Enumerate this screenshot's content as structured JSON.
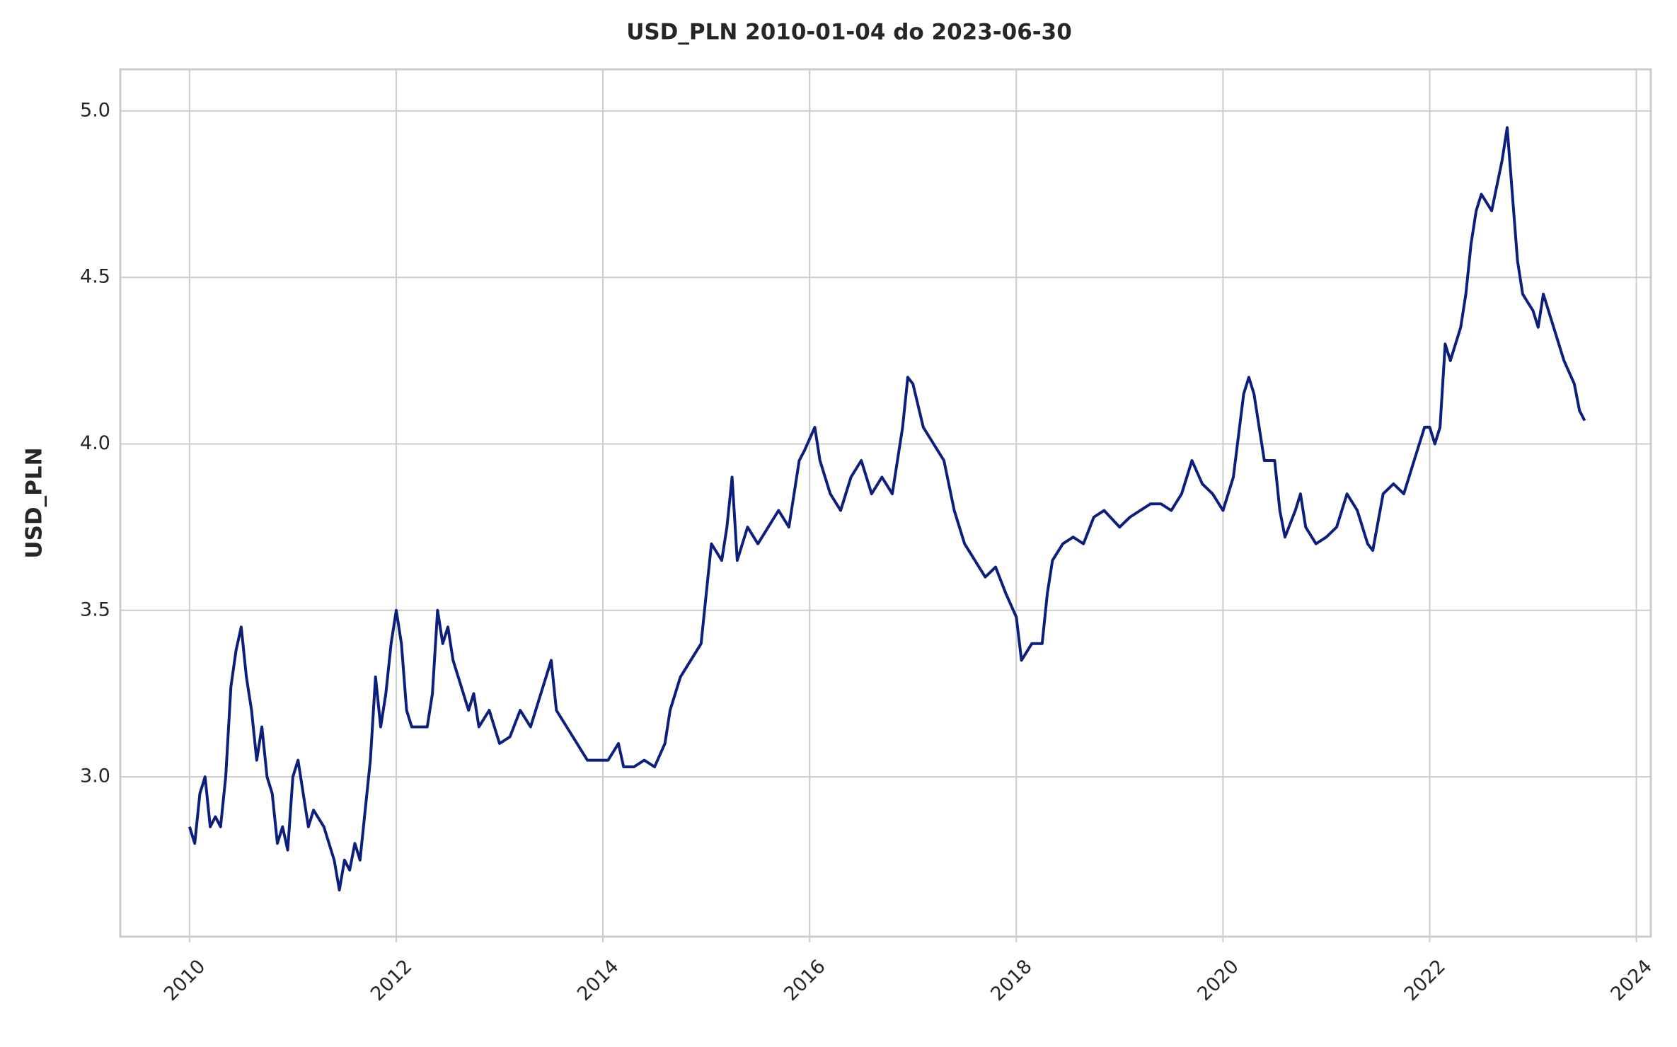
{
  "chart_data": {
    "type": "line",
    "title": "USD_PLN 2010-01-04 do 2023-06-30",
    "ylabel": "USD_PLN",
    "color": "#0c1f7d",
    "grid": true,
    "xlim": [
      2009.33,
      2024.14
    ],
    "ylim": [
      2.52,
      5.125
    ],
    "xticks": [
      2010,
      2012,
      2014,
      2016,
      2018,
      2020,
      2022,
      2024
    ],
    "yticks": [
      {
        "value": 3,
        "label": "3.0"
      },
      3.5,
      {
        "value": 4,
        "label": "4.0"
      },
      4.5,
      {
        "value": 5,
        "label": "5.0"
      }
    ],
    "x": [
      2010.0,
      2010.05,
      2010.1,
      2010.15,
      2010.2,
      2010.25,
      2010.3,
      2010.35,
      2010.4,
      2010.45,
      2010.5,
      2010.55,
      2010.6,
      2010.65,
      2010.7,
      2010.75,
      2010.8,
      2010.85,
      2010.9,
      2010.95,
      2011.0,
      2011.05,
      2011.1,
      2011.15,
      2011.2,
      2011.3,
      2011.4,
      2011.45,
      2011.5,
      2011.55,
      2011.6,
      2011.65,
      2011.7,
      2011.75,
      2011.8,
      2011.85,
      2011.9,
      2011.95,
      2012.0,
      2012.05,
      2012.1,
      2012.15,
      2012.2,
      2012.3,
      2012.35,
      2012.4,
      2012.45,
      2012.5,
      2012.55,
      2012.6,
      2012.7,
      2012.75,
      2012.8,
      2012.9,
      2013.0,
      2013.1,
      2013.2,
      2013.3,
      2013.4,
      2013.5,
      2013.55,
      2013.65,
      2013.75,
      2013.85,
      2013.95,
      2014.05,
      2014.15,
      2014.2,
      2014.3,
      2014.4,
      2014.5,
      2014.6,
      2014.65,
      2014.75,
      2014.85,
      2014.95,
      2015.0,
      2015.05,
      2015.15,
      2015.2,
      2015.25,
      2015.3,
      2015.4,
      2015.5,
      2015.6,
      2015.7,
      2015.8,
      2015.9,
      2015.95,
      2016.05,
      2016.1,
      2016.2,
      2016.3,
      2016.4,
      2016.5,
      2016.6,
      2016.7,
      2016.8,
      2016.9,
      2016.95,
      2017.0,
      2017.1,
      2017.2,
      2017.3,
      2017.4,
      2017.5,
      2017.6,
      2017.7,
      2017.8,
      2017.9,
      2018.0,
      2018.05,
      2018.15,
      2018.25,
      2018.3,
      2018.35,
      2018.45,
      2018.55,
      2018.65,
      2018.75,
      2018.85,
      2019.0,
      2019.1,
      2019.2,
      2019.3,
      2019.4,
      2019.5,
      2019.6,
      2019.7,
      2019.8,
      2019.9,
      2020.0,
      2020.1,
      2020.2,
      2020.25,
      2020.3,
      2020.4,
      2020.5,
      2020.55,
      2020.6,
      2020.7,
      2020.75,
      2020.8,
      2020.9,
      2021.0,
      2021.1,
      2021.2,
      2021.3,
      2021.4,
      2021.45,
      2021.55,
      2021.65,
      2021.75,
      2021.85,
      2021.95,
      2022.0,
      2022.05,
      2022.1,
      2022.15,
      2022.2,
      2022.3,
      2022.35,
      2022.4,
      2022.45,
      2022.5,
      2022.6,
      2022.7,
      2022.75,
      2022.8,
      2022.85,
      2022.9,
      2023.0,
      2023.05,
      2023.1,
      2023.15,
      2023.25,
      2023.3,
      2023.4,
      2023.45,
      2023.5
    ],
    "values": [
      2.85,
      2.8,
      2.95,
      3.0,
      2.85,
      2.88,
      2.85,
      3.0,
      3.27,
      3.38,
      3.45,
      3.3,
      3.2,
      3.05,
      3.15,
      3.0,
      2.95,
      2.8,
      2.85,
      2.78,
      3.0,
      3.05,
      2.95,
      2.85,
      2.9,
      2.85,
      2.75,
      2.66,
      2.75,
      2.72,
      2.8,
      2.75,
      2.9,
      3.05,
      3.3,
      3.15,
      3.25,
      3.4,
      3.5,
      3.4,
      3.2,
      3.15,
      3.15,
      3.15,
      3.25,
      3.5,
      3.4,
      3.45,
      3.35,
      3.3,
      3.2,
      3.25,
      3.15,
      3.2,
      3.1,
      3.12,
      3.2,
      3.15,
      3.25,
      3.35,
      3.2,
      3.15,
      3.1,
      3.05,
      3.05,
      3.05,
      3.1,
      3.03,
      3.03,
      3.05,
      3.03,
      3.1,
      3.2,
      3.3,
      3.35,
      3.4,
      3.55,
      3.7,
      3.65,
      3.75,
      3.9,
      3.65,
      3.75,
      3.7,
      3.75,
      3.8,
      3.75,
      3.95,
      3.98,
      4.05,
      3.95,
      3.85,
      3.8,
      3.9,
      3.95,
      3.85,
      3.9,
      3.85,
      4.05,
      4.2,
      4.18,
      4.05,
      4.0,
      3.95,
      3.8,
      3.7,
      3.65,
      3.6,
      3.63,
      3.55,
      3.48,
      3.35,
      3.4,
      3.4,
      3.55,
      3.65,
      3.7,
      3.72,
      3.7,
      3.78,
      3.8,
      3.75,
      3.78,
      3.8,
      3.82,
      3.82,
      3.8,
      3.85,
      3.95,
      3.88,
      3.85,
      3.8,
      3.9,
      4.15,
      4.2,
      4.15,
      3.95,
      3.95,
      3.8,
      3.72,
      3.8,
      3.85,
      3.75,
      3.7,
      3.72,
      3.75,
      3.85,
      3.8,
      3.7,
      3.68,
      3.85,
      3.88,
      3.85,
      3.95,
      4.05,
      4.05,
      4.0,
      4.05,
      4.3,
      4.25,
      4.35,
      4.45,
      4.6,
      4.7,
      4.75,
      4.7,
      4.85,
      4.95,
      4.75,
      4.55,
      4.45,
      4.4,
      4.35,
      4.45,
      4.4,
      4.3,
      4.25,
      4.18,
      4.1,
      4.07
    ]
  }
}
